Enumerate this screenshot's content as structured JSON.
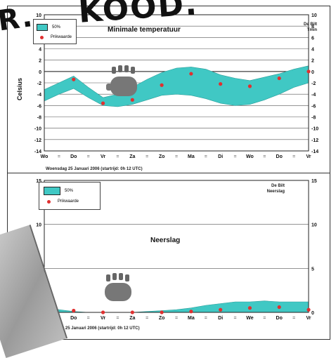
{
  "stamp_text": "R.",
  "stamp_text_2": "KOOD.",
  "chart_data": [
    {
      "type": "area",
      "title": "Minimale temperatuur",
      "station": "De Bilt",
      "station_sub": "Tmin",
      "ylabel": "Celsius",
      "ylim": [
        -14,
        10
      ],
      "yticks": [
        10,
        8,
        6,
        4,
        2,
        0,
        -2,
        -4,
        -6,
        -8,
        -10,
        -12,
        -14
      ],
      "categories": [
        "Wo",
        "Do",
        "Vr",
        "Za",
        "Zo",
        "Ma",
        "Di",
        "Wo",
        "Do",
        "Vr"
      ],
      "issue_text": "Woensdag 25 Januari  2006 (startrijd: 0h 12 UTC)",
      "legend": [
        "50%",
        "Prikwaarde"
      ],
      "band_color": "#40c8c4",
      "point_color": "#e03030",
      "band": {
        "x": [
          0,
          0.5,
          1,
          1.5,
          2,
          2.5,
          3,
          3.5,
          4,
          4.5,
          5,
          5.5,
          6,
          6.5,
          7,
          7.5,
          8,
          8.5,
          9
        ],
        "upper": [
          -3.2,
          -2.0,
          -0.8,
          -2.8,
          -4.6,
          -4.0,
          -2.8,
          -1.4,
          -0.2,
          0.6,
          0.8,
          0.4,
          -0.6,
          -1.2,
          -1.6,
          -1.0,
          -0.4,
          0.4,
          1.0
        ],
        "lower": [
          -5.2,
          -4.0,
          -3.0,
          -4.6,
          -6.0,
          -6.2,
          -5.8,
          -5.0,
          -4.2,
          -4.0,
          -4.2,
          -4.8,
          -5.6,
          -6.0,
          -5.8,
          -5.0,
          -4.0,
          -2.8,
          -2.0
        ]
      },
      "points": [
        {
          "x": 1,
          "y": -1.4
        },
        {
          "x": 2,
          "y": -5.6
        },
        {
          "x": 3,
          "y": -5.0
        },
        {
          "x": 4,
          "y": -2.4
        },
        {
          "x": 5,
          "y": -0.4
        },
        {
          "x": 6,
          "y": -2.2
        },
        {
          "x": 7,
          "y": -2.6
        },
        {
          "x": 8,
          "y": -1.2
        },
        {
          "x": 9,
          "y": 0.0
        }
      ]
    },
    {
      "type": "area",
      "title": "Neerslag",
      "station": "De Bilt",
      "station_sub": "Neerslag",
      "ylabel": "mm",
      "ylim": [
        0,
        15
      ],
      "yticks": [
        15,
        10,
        5,
        0
      ],
      "categories": [
        "Wo",
        "Do",
        "Vr",
        "Za",
        "Zo",
        "Ma",
        "Di",
        "We",
        "Do",
        "Vr"
      ],
      "issue_text": "Woensdag 25 Januari  2006 (startrijd: 0h 12 UTC)",
      "legend": [
        "50%",
        "Prikwaarde"
      ],
      "band_color": "#40c8c4",
      "point_color": "#e03030",
      "band": {
        "x": [
          0,
          0.5,
          1,
          1.5,
          2,
          2.5,
          3,
          3.5,
          4,
          4.5,
          5,
          5.5,
          6,
          6.5,
          7,
          7.5,
          8,
          8.5,
          9
        ],
        "upper": [
          0.6,
          0.3,
          0.1,
          0.0,
          0.0,
          0.0,
          0.0,
          0.1,
          0.2,
          0.3,
          0.5,
          0.8,
          1.0,
          1.2,
          1.2,
          1.3,
          1.2,
          1.2,
          1.2
        ],
        "lower": [
          0.0,
          0.0,
          0.0,
          0.0,
          0.0,
          0.0,
          0.0,
          0.0,
          0.0,
          0.0,
          0.0,
          0.0,
          0.0,
          0.0,
          0.0,
          0.0,
          0.0,
          0.0,
          0.0
        ]
      },
      "points": [
        {
          "x": 0,
          "y": 0.8
        },
        {
          "x": 1,
          "y": 0.2
        },
        {
          "x": 2,
          "y": 0.0
        },
        {
          "x": 3,
          "y": 0.0
        },
        {
          "x": 4,
          "y": 0.0
        },
        {
          "x": 5,
          "y": 0.1
        },
        {
          "x": 6,
          "y": 0.3
        },
        {
          "x": 7,
          "y": 0.5
        },
        {
          "x": 8,
          "y": 0.6
        },
        {
          "x": 9,
          "y": 0.3
        }
      ]
    }
  ]
}
